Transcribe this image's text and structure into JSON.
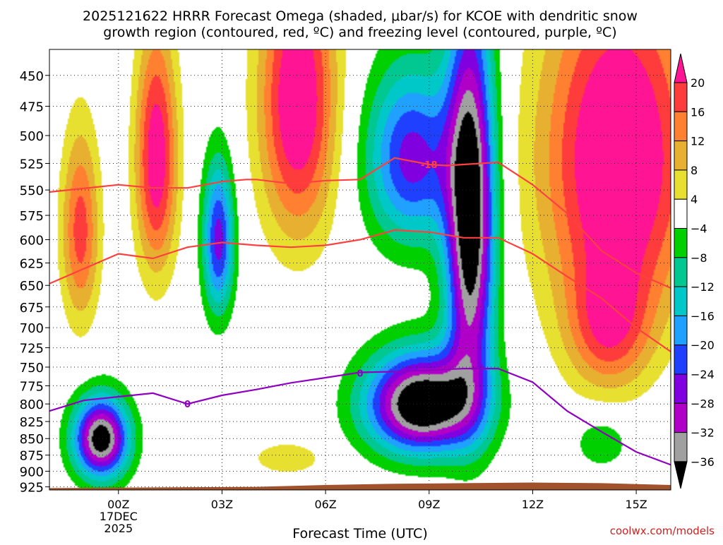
{
  "chart_data": {
    "type": "heatmap",
    "title_line1": "2025121622 HRRR Forecast Omega (shaded, μbar/s) for KCOE with dendritic snow",
    "title_line2": "growth region (contoured, red, ºC) and freezing level (contoured, purple, ºC)",
    "xlabel": "Forecast Time (UTC)",
    "watermark": "coolwx.com/models",
    "x_ticks": [
      {
        "hour": 0,
        "label": "00Z",
        "sub1": "17DEC",
        "sub2": "2025"
      },
      {
        "hour": 3,
        "label": "03Z"
      },
      {
        "hour": 6,
        "label": "06Z"
      },
      {
        "hour": 9,
        "label": "09Z"
      },
      {
        "hour": 12,
        "label": "12Z"
      },
      {
        "hour": 15,
        "label": "15Z"
      }
    ],
    "xlim_hours": [
      -2,
      16
    ],
    "y_levels": [
      450,
      475,
      500,
      525,
      550,
      575,
      600,
      625,
      650,
      675,
      700,
      725,
      750,
      775,
      800,
      825,
      850,
      875,
      900,
      925
    ],
    "ylim_mb": [
      430,
      930
    ],
    "y_scale": "log-pressure",
    "grid": "dotted",
    "colorbar": {
      "labels": [
        "20",
        "16",
        "12",
        "8",
        "4",
        "−4",
        "−8",
        "−12",
        "−16",
        "−20",
        "−24",
        "−28",
        "−32",
        "−36"
      ],
      "bins": [
        {
          "min": 20,
          "color": "#ff1493"
        },
        {
          "min": 16,
          "max": 20,
          "color": "#ff3c3c"
        },
        {
          "min": 12,
          "max": 16,
          "color": "#ff8030"
        },
        {
          "min": 8,
          "max": 12,
          "color": "#e8b030"
        },
        {
          "min": 4,
          "max": 8,
          "color": "#e8e030"
        },
        {
          "min": -4,
          "max": 4,
          "color": "#ffffff"
        },
        {
          "min": -8,
          "max": -4,
          "color": "#00d000"
        },
        {
          "min": -12,
          "max": -8,
          "color": "#00c890"
        },
        {
          "min": -16,
          "max": -12,
          "color": "#00c8c8"
        },
        {
          "min": -20,
          "max": -16,
          "color": "#20a0ff"
        },
        {
          "min": -24,
          "max": -20,
          "color": "#2040ff"
        },
        {
          "min": -28,
          "max": -24,
          "color": "#8000e0"
        },
        {
          "min": -32,
          "max": -28,
          "color": "#b000c8"
        },
        {
          "min": -36,
          "max": -32,
          "color": "#a0a0a0"
        },
        {
          "max": -36,
          "color": "#000000"
        }
      ]
    },
    "omega_features": [
      {
        "hour": -1.1,
        "mb": 590,
        "omega": 18,
        "spread_h": 0.55,
        "spread_mb": 100
      },
      {
        "hour": 1.1,
        "mb": 520,
        "omega": 24,
        "spread_h": 0.6,
        "spread_mb": 110
      },
      {
        "hour": 5.2,
        "mb": 470,
        "omega": 26,
        "spread_h": 1.1,
        "spread_mb": 120
      },
      {
        "hour": 14.5,
        "mb": 520,
        "omega": 28,
        "spread_h": 2.2,
        "spread_mb": 160
      },
      {
        "hour": 14.2,
        "mb": 700,
        "omega": 16,
        "spread_h": 1.2,
        "spread_mb": 80
      },
      {
        "hour": 4.9,
        "mb": 880,
        "omega": 8,
        "spread_h": 1.0,
        "spread_mb": 25
      },
      {
        "hour": -0.5,
        "mb": 850,
        "omega": -40,
        "spread_h": 0.8,
        "spread_mb": 60
      },
      {
        "hour": 2.9,
        "mb": 600,
        "omega": -26,
        "spread_h": 0.45,
        "spread_mb": 80
      },
      {
        "hour": 8.8,
        "mb": 800,
        "omega": -44,
        "spread_h": 1.6,
        "spread_mb": 70
      },
      {
        "hour": 10.2,
        "mb": 580,
        "omega": -42,
        "spread_h": 0.7,
        "spread_mb": 200
      },
      {
        "hour": 8.5,
        "mb": 520,
        "omega": -26,
        "spread_h": 1.3,
        "spread_mb": 80
      },
      {
        "hour": 14.0,
        "mb": 855,
        "omega": -8,
        "spread_h": 0.8,
        "spread_mb": 40
      }
    ],
    "series": [
      {
        "name": "-12 °C isotherm",
        "color": "#ff4040",
        "hours": [
          -2,
          0,
          1,
          2,
          3,
          4,
          5,
          6,
          7,
          8,
          9,
          10,
          11,
          12,
          13,
          14,
          15,
          16
        ],
        "mb": [
          648,
          615,
          620,
          608,
          603,
          606,
          608,
          606,
          600,
          590,
          592,
          598,
          598,
          615,
          640,
          665,
          700,
          730
        ]
      },
      {
        "name": "-18 °C isotherm",
        "color": "#ff4040",
        "label": "-18",
        "hours": [
          -2,
          0,
          1,
          2,
          3,
          3.7,
          4,
          5,
          6,
          7,
          8,
          9,
          9.5,
          10,
          11,
          12,
          13,
          14,
          15,
          16
        ],
        "mb": [
          552,
          545,
          548,
          548,
          542,
          540,
          540,
          544,
          541,
          540,
          520,
          526,
          527,
          526,
          524,
          545,
          573,
          612,
          636,
          653
        ]
      },
      {
        "name": "0 °C freezing level",
        "color": "#9000c0",
        "label": "0",
        "hours": [
          -2,
          -1,
          0,
          1,
          2,
          3,
          4,
          5,
          6,
          7,
          8,
          9,
          10,
          11,
          12,
          13,
          14,
          15,
          16
        ],
        "mb": [
          810,
          795,
          790,
          785,
          800,
          788,
          780,
          771,
          764,
          757,
          756,
          754,
          752,
          752,
          770,
          810,
          840,
          870,
          890
        ]
      }
    ],
    "terrain": {
      "color": "#a0522d",
      "hours": [
        -2,
        4,
        6,
        8,
        10,
        12,
        14,
        16
      ],
      "mb": [
        927,
        925,
        922,
        920,
        919,
        918,
        919,
        922
      ]
    }
  }
}
